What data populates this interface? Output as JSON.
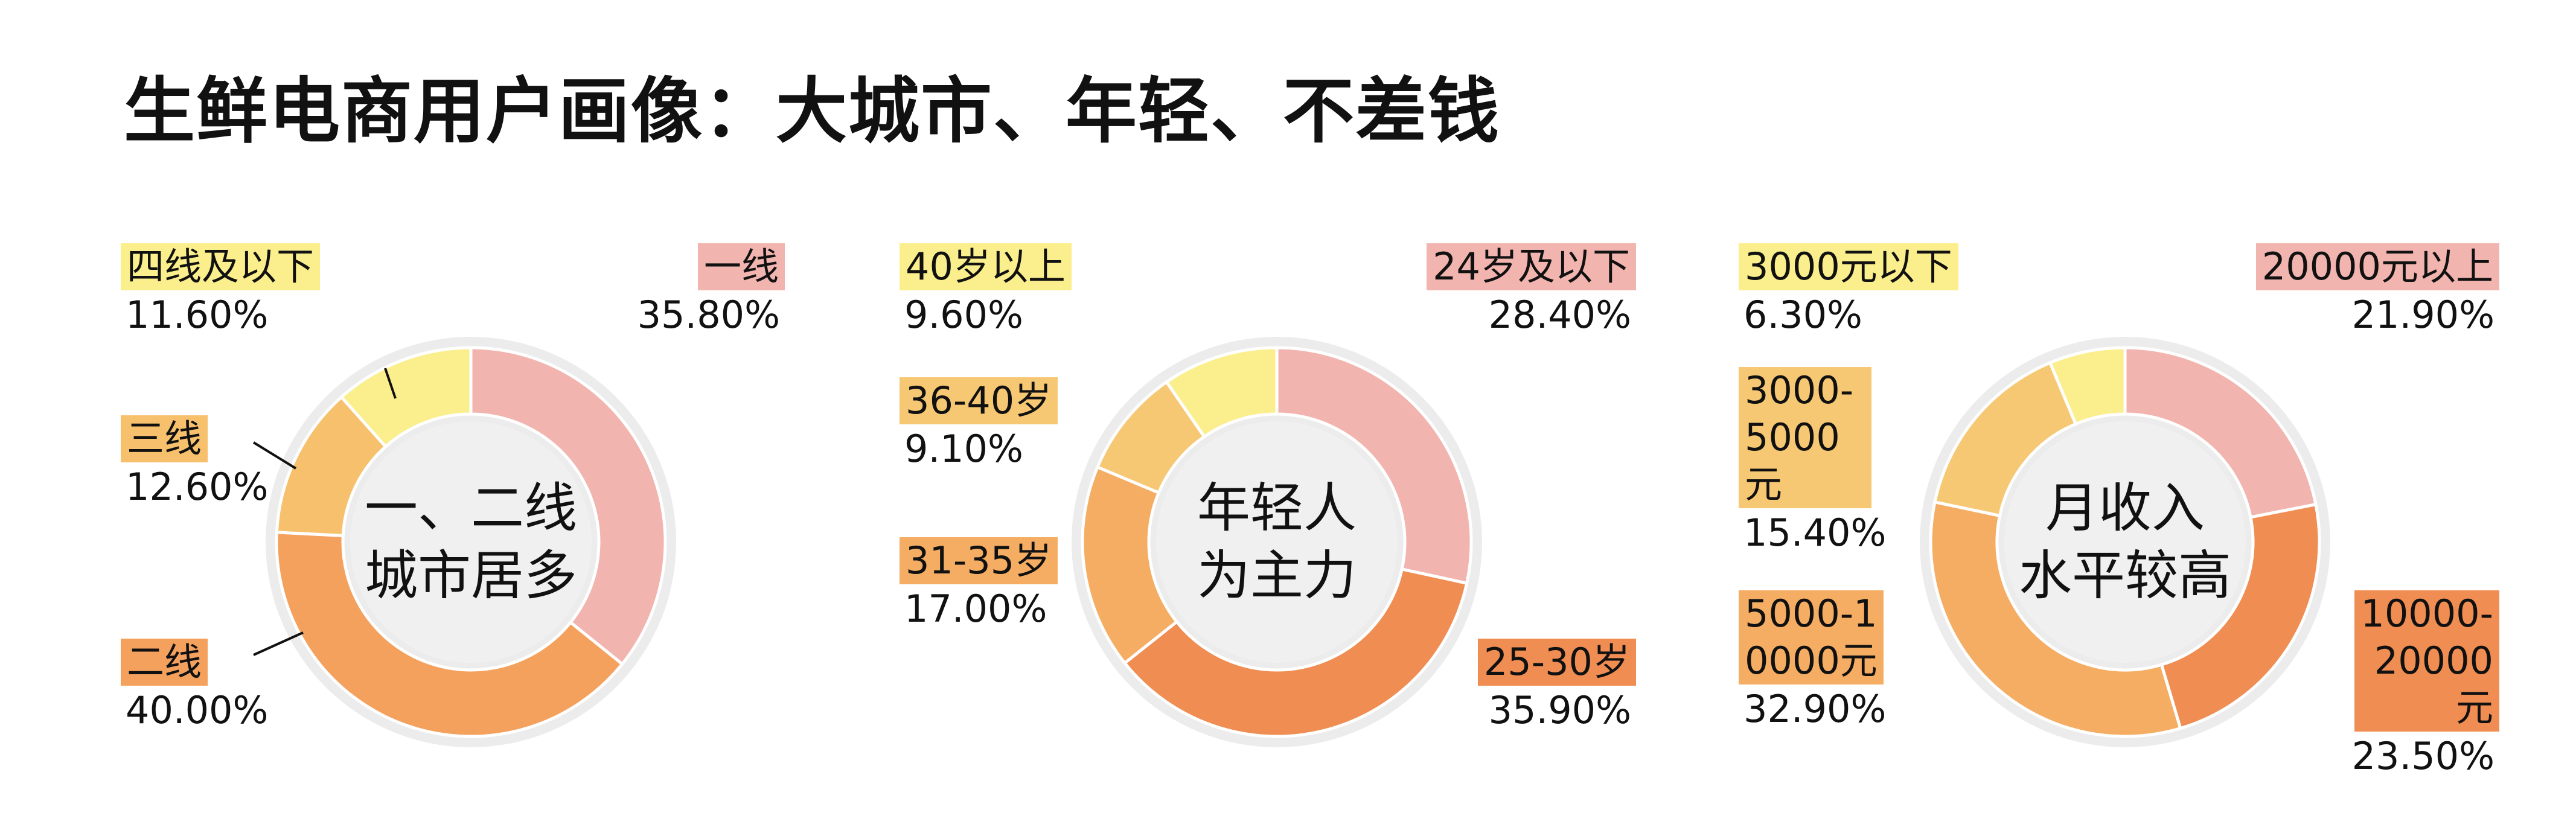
{
  "title": "生鲜电商用户画像：大城市、年轻、不差钱",
  "colors": {
    "ring_bg": "#ececec",
    "inner_bg": "#f0f0f0",
    "pink": "#f2b4ae",
    "orange_dark": "#ef8d52",
    "orange_mid": "#f5ad63",
    "orange_light": "#f7c873",
    "yellow": "#fbee8c"
  },
  "chart_data": [
    {
      "type": "pie",
      "variant": "donut",
      "center_text": [
        "一、二线",
        "城市居多"
      ],
      "slices": [
        {
          "label": "一线",
          "value": 35.8,
          "display": "35.80%",
          "color": "#f2b4ae"
        },
        {
          "label": "二线",
          "value": 40.0,
          "display": "40.00%",
          "color": "#f4a15e"
        },
        {
          "label": "三线",
          "value": 12.6,
          "display": "12.60%",
          "color": "#f7c06d"
        },
        {
          "label": "四线及以下",
          "value": 11.6,
          "display": "11.60%",
          "color": "#fbee8c"
        }
      ]
    },
    {
      "type": "pie",
      "variant": "donut",
      "center_text": [
        "年轻人",
        "为主力"
      ],
      "slices": [
        {
          "label": "24岁及以下",
          "value": 28.4,
          "display": "28.40%",
          "color": "#f2b4ae"
        },
        {
          "label": "25-30岁",
          "value": 35.9,
          "display": "35.90%",
          "color": "#ef8d52"
        },
        {
          "label": "31-35岁",
          "value": 17.0,
          "display": "17.00%",
          "color": "#f5ad63"
        },
        {
          "label": "36-40岁",
          "value": 9.1,
          "display": "9.10%",
          "color": "#f7c873"
        },
        {
          "label": "40岁以上",
          "value": 9.6,
          "display": "9.60%",
          "color": "#fbee8c"
        }
      ]
    },
    {
      "type": "pie",
      "variant": "donut",
      "center_text": [
        "月收入",
        "水平较高"
      ],
      "slices": [
        {
          "label": "20000元以上",
          "value": 21.9,
          "display": "21.90%",
          "color": "#f2b4ae"
        },
        {
          "label": "10000-20000元",
          "value": 23.5,
          "display": "23.50%",
          "color": "#ef8d52"
        },
        {
          "label": "5000-10000元",
          "value": 32.9,
          "display": "32.90%",
          "color": "#f5ad63"
        },
        {
          "label": "3000-5000元",
          "value": 15.4,
          "display": "15.40%",
          "color": "#f7c873"
        },
        {
          "label": "3000元以下",
          "value": 6.3,
          "display": "6.30%",
          "color": "#fbee8c"
        }
      ]
    }
  ]
}
